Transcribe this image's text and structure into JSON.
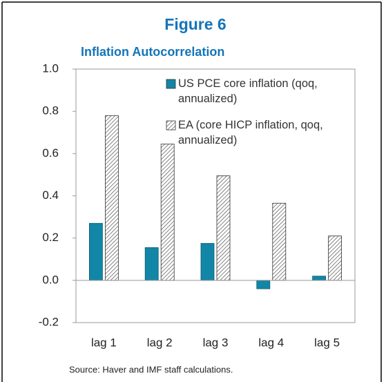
{
  "chart_data": {
    "type": "bar",
    "title": "Figure 6",
    "subtitle": "Inflation Autocorrelation",
    "source": "Source: Haver and IMF staff calculations.",
    "categories": [
      "lag 1",
      "lag 2",
      "lag 3",
      "lag 4",
      "lag 5"
    ],
    "series": [
      {
        "name": "US PCE core inflation (qoq, annualized)",
        "color": "#1286a6",
        "values": [
          0.27,
          0.155,
          0.175,
          -0.04,
          0.02
        ]
      },
      {
        "name": "EA (core HICP inflation, qoq, annualized)",
        "color": "#333333",
        "values": [
          0.78,
          0.645,
          0.495,
          0.365,
          0.21
        ]
      }
    ],
    "ylim": [
      -0.2,
      1.0
    ],
    "yticks": [
      {
        "value": -0.2,
        "label": "-0.2"
      },
      {
        "value": 0,
        "label": "0.0"
      },
      {
        "value": 0.2,
        "label": "0.2"
      },
      {
        "value": 0.4,
        "label": "0.4"
      },
      {
        "value": 0.6,
        "label": "0.6"
      },
      {
        "value": 0.8,
        "label": "0.8"
      },
      {
        "value": 1.0,
        "label": "1.0"
      }
    ],
    "legend": "top-right"
  }
}
